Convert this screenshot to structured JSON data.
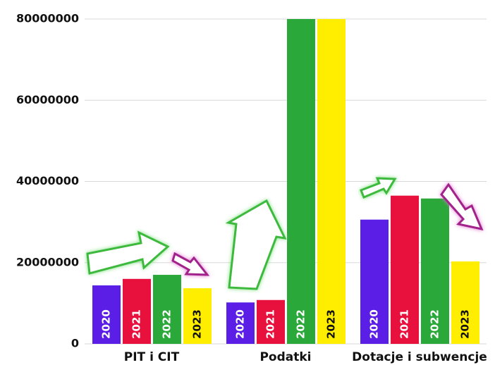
{
  "chart_data": {
    "type": "bar",
    "categories": [
      "PIT i CIT",
      "Podatki",
      "Dotacje i subwencje"
    ],
    "series": [
      {
        "name": "2020",
        "color": "#5b1ee6",
        "values": [
          14400000,
          10200000,
          30600000
        ]
      },
      {
        "name": "2021",
        "color": "#e8103c",
        "values": [
          16000000,
          10800000,
          36500000
        ]
      },
      {
        "name": "2022",
        "color": "#2aa83a",
        "values": [
          17000000,
          80000000,
          35800000
        ]
      },
      {
        "name": "2023",
        "color": "#ffee00",
        "values": [
          13700000,
          80000000,
          20300000
        ]
      }
    ],
    "ylim": [
      0,
      80000000
    ],
    "yticks": [
      0,
      20000000,
      40000000,
      60000000,
      80000000
    ],
    "grid": true
  }
}
